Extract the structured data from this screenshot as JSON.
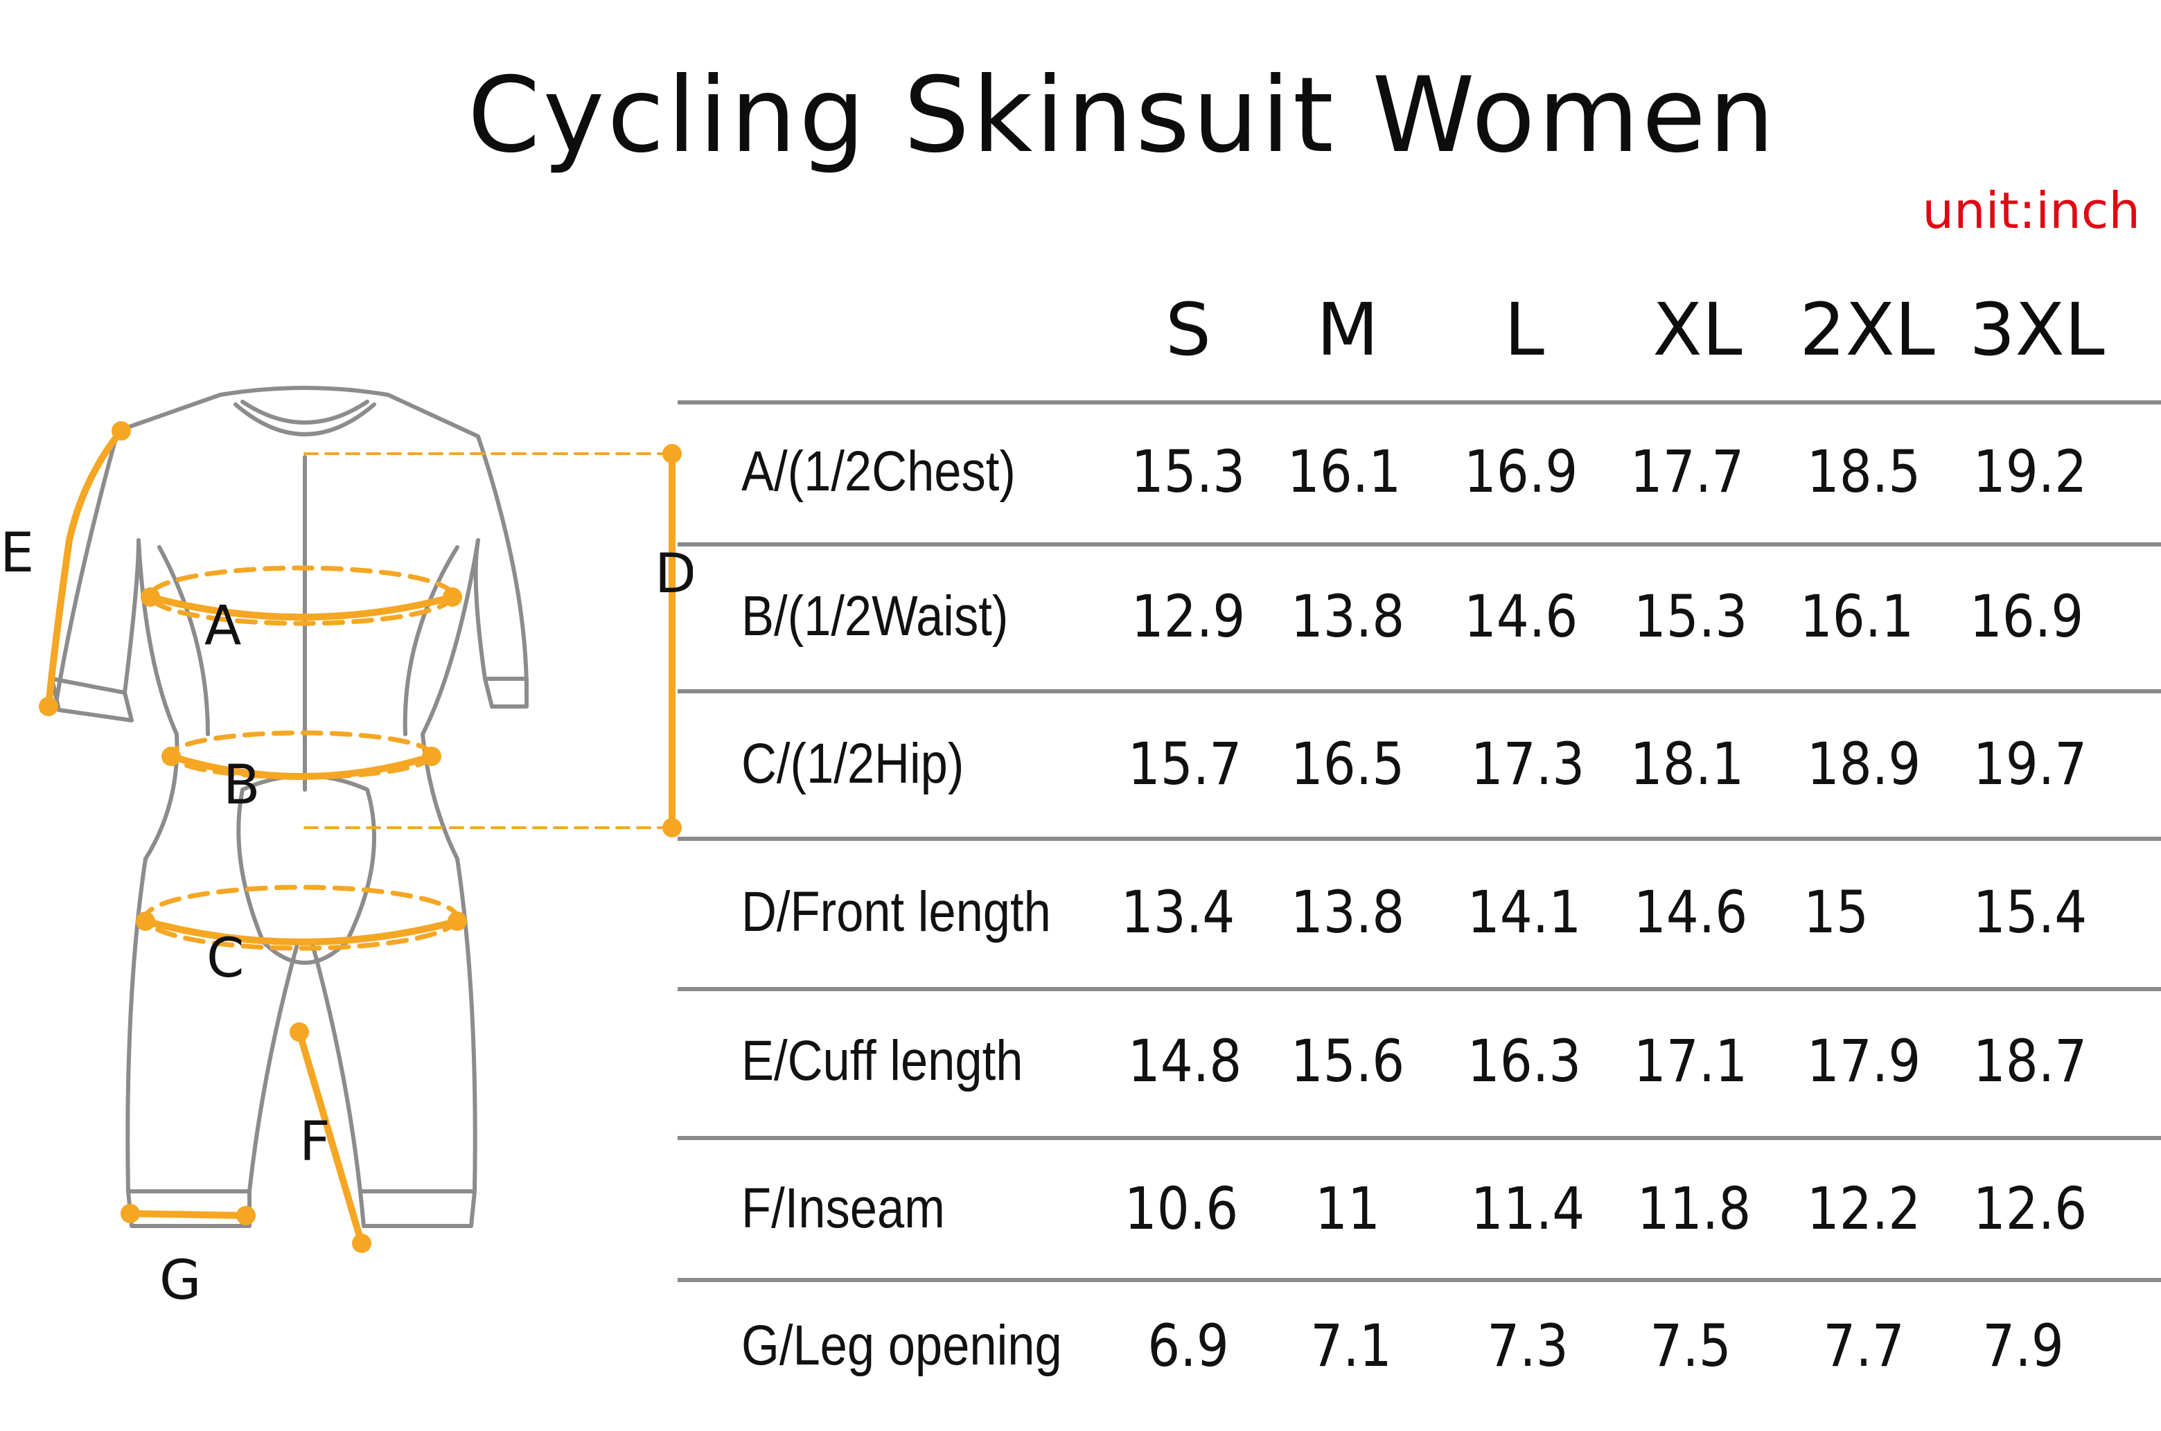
{
  "title": "Cycling Skinsuit Women",
  "unit": "unit:inch",
  "colors": {
    "accent": "#f5a623",
    "unit_text": "#e20613",
    "rule": "#8a8a8a",
    "garment_outline": "#8c8c8c"
  },
  "diagram_labels": {
    "A": "A",
    "B": "B",
    "C": "C",
    "D": "D",
    "E": "E",
    "F": "F",
    "G": "G"
  },
  "sizes": [
    "S",
    "M",
    "L",
    "XL",
    "2XL",
    "3XL"
  ],
  "rows": [
    {
      "label": "A/(1/2Chest)",
      "values": [
        "15.3",
        "16.1",
        "16.9",
        "17.7",
        "18.5",
        "19.2"
      ]
    },
    {
      "label": "B/(1/2Waist)",
      "values": [
        "12.9",
        "13.8",
        "14.6",
        "15.3",
        "16.1",
        "16.9"
      ]
    },
    {
      "label": "C/(1/2Hip)",
      "values": [
        "15.7",
        "16.5",
        "17.3",
        "18.1",
        "18.9",
        "19.7"
      ]
    },
    {
      "label": "D/Front length",
      "values": [
        "13.4",
        "13.8",
        "14.1",
        "14.6",
        "15",
        "15.4"
      ]
    },
    {
      "label": "E/Cuff length",
      "values": [
        "14.8",
        "15.6",
        "16.3",
        "17.1",
        "17.9",
        "18.7"
      ]
    },
    {
      "label": "F/Inseam",
      "values": [
        "10.6",
        "11",
        "11.4",
        "11.8",
        "12.2",
        "12.6"
      ]
    },
    {
      "label": "G/Leg opening",
      "values": [
        "6.9",
        "7.1",
        "7.3",
        "7.5",
        "7.7",
        "7.9"
      ]
    }
  ]
}
